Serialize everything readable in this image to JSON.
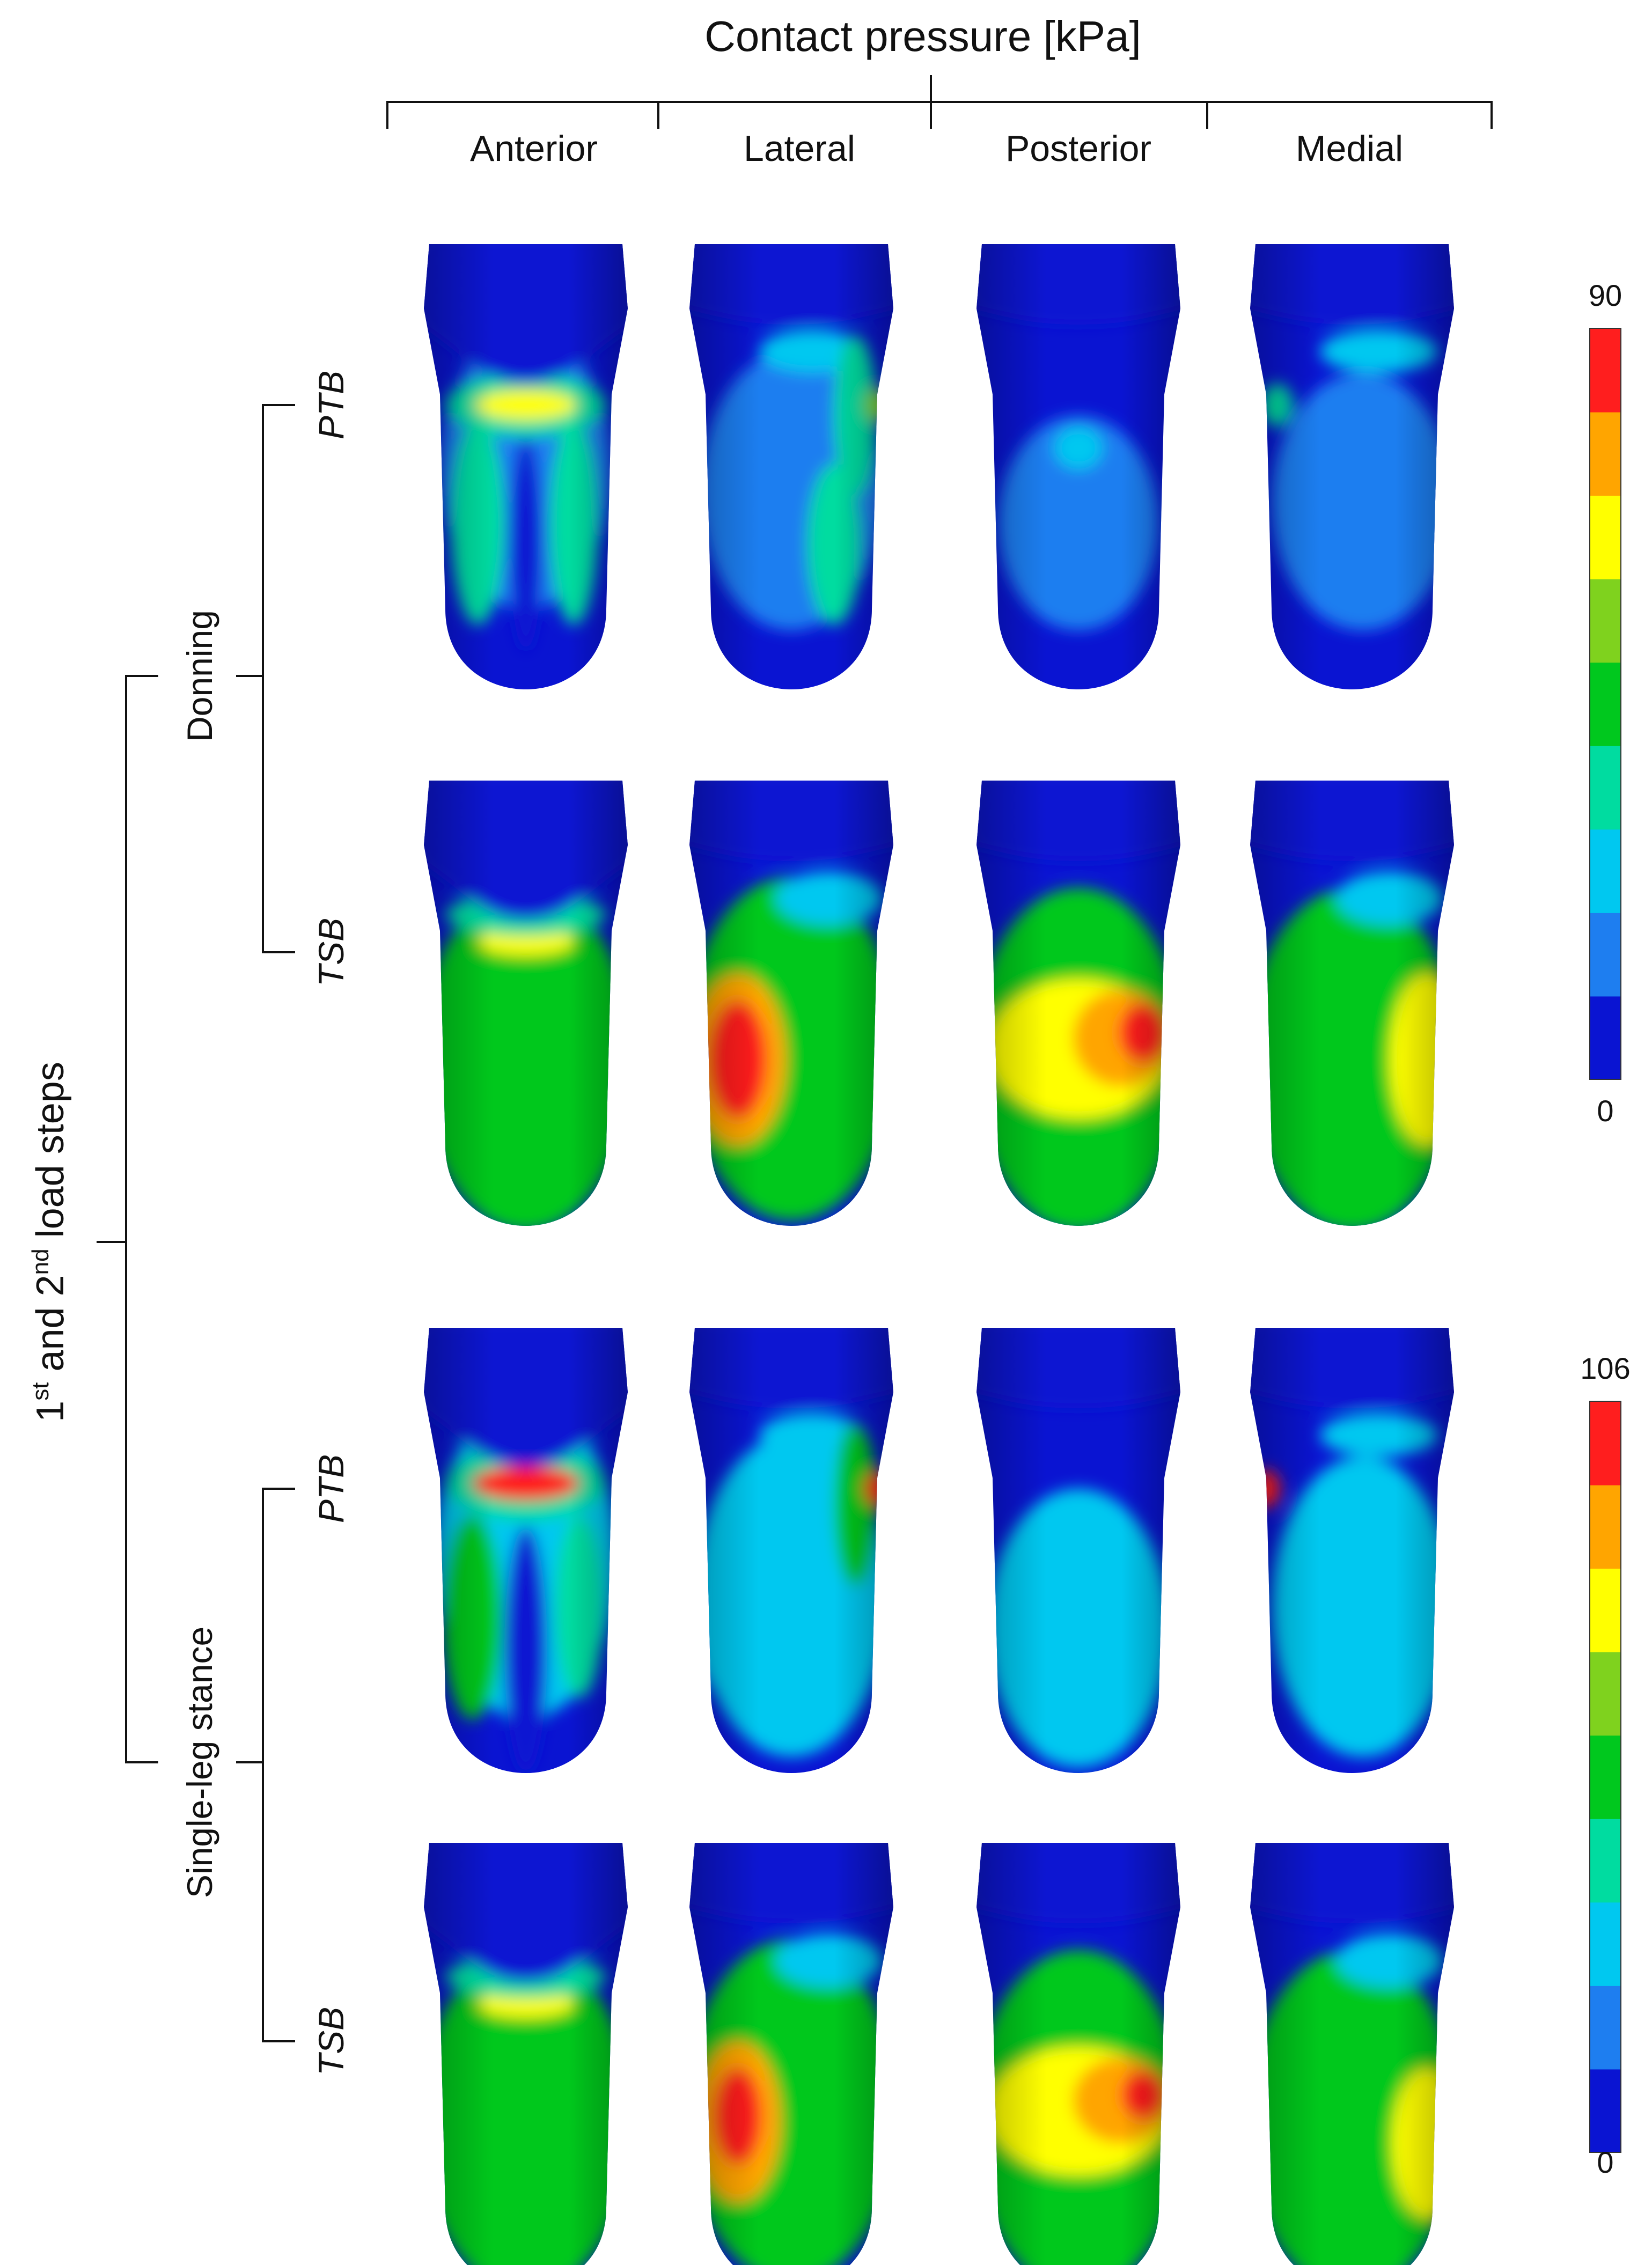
{
  "title": "Contact pressure [kPa]",
  "views": [
    "Anterior",
    "Lateral",
    "Posterior",
    "Medial"
  ],
  "outer_group": {
    "prefix": "1",
    "prefix_sup": "st",
    "middle": " and 2",
    "middle_sup": "nd",
    "suffix": " load steps"
  },
  "load_steps": [
    {
      "label": "Donning",
      "colorbar": {
        "max_label": "90",
        "min_label": "0"
      },
      "rows": [
        {
          "label": "PTB",
          "pattern": "ptb_donning"
        },
        {
          "label": "TSB",
          "pattern": "tsb_donning"
        }
      ]
    },
    {
      "label": "Single-leg stance",
      "colorbar": {
        "max_label": "106",
        "min_label": "0"
      },
      "rows": [
        {
          "label": "PTB",
          "pattern": "ptb_stance"
        },
        {
          "label": "TSB",
          "pattern": "tsb_stance"
        }
      ]
    }
  ],
  "colormap": [
    "#0a14d2",
    "#1e7ef0",
    "#00c8f0",
    "#00dca0",
    "#00c81e",
    "#7fd21e",
    "#ffff00",
    "#ffa500",
    "#ff1e1e"
  ]
}
